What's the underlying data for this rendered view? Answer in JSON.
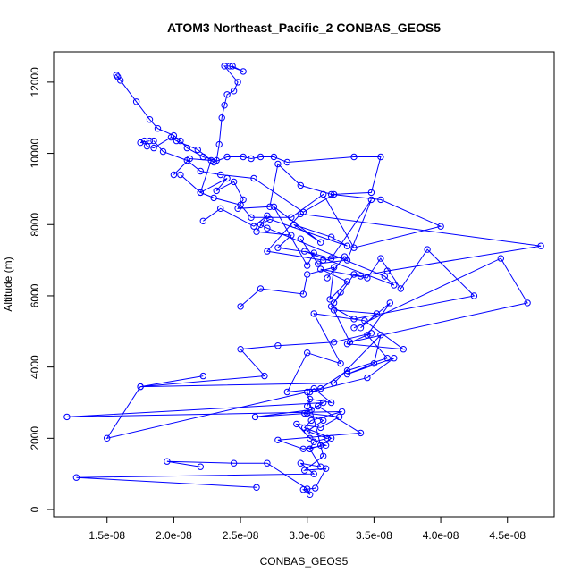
{
  "chart_data": {
    "type": "scatter",
    "title": "ATOM3 Northeast_Pacific_2 CONBAS_GEOS5",
    "xlabel": "CONBAS_GEOS5",
    "ylabel": "Altitude (m)",
    "xlim": [
      1.1e-08,
      4.85e-08
    ],
    "ylim": [
      -200,
      12850
    ],
    "x_ticks": [
      {
        "value": 1.5e-08,
        "label": "1.5e-08"
      },
      {
        "value": 2e-08,
        "label": "2.0e-08"
      },
      {
        "value": 2.5e-08,
        "label": "2.5e-08"
      },
      {
        "value": 3e-08,
        "label": "3.0e-08"
      },
      {
        "value": 3.5e-08,
        "label": "3.5e-08"
      },
      {
        "value": 4e-08,
        "label": "4.0e-08"
      },
      {
        "value": 4.5e-08,
        "label": "4.5e-08"
      }
    ],
    "y_ticks": [
      {
        "value": 0,
        "label": "0"
      },
      {
        "value": 2000,
        "label": "2000"
      },
      {
        "value": 4000,
        "label": "4000"
      },
      {
        "value": 6000,
        "label": "6000"
      },
      {
        "value": 8000,
        "label": "8000"
      },
      {
        "value": 10000,
        "label": "10000"
      },
      {
        "value": 12000,
        "label": "12000"
      }
    ],
    "grid": false,
    "markers": "open-circle",
    "connected": true,
    "color": "#0000ff",
    "series": [
      {
        "x": [
          2.62e-08,
          1.27e-08,
          3.05e-08,
          2.95e-08,
          3.1e-08,
          3.02e-08,
          3.05e-08,
          3.15e-08,
          3e-08,
          3.12e-08,
          2.98e-08,
          3.08e-08,
          3.4e-08,
          2.78e-08,
          2.97e-08,
          3.14e-08,
          3.02e-08,
          2.92e-08,
          3.1e-08,
          3.24e-08,
          3e-08,
          2.61e-08,
          3.03e-08,
          3.12e-08,
          1.2e-08,
          3.26e-08,
          3.03e-08,
          2.98e-08,
          3.18e-08,
          3.1e-08,
          3.02e-08
        ],
        "y": [
          620,
          900,
          1000,
          1300,
          1200,
          1700,
          1900,
          2000,
          2200,
          2500,
          2700,
          2900,
          2150,
          1950,
          1700,
          1800,
          2000,
          2400,
          2300,
          2600,
          2700,
          2600,
          2800,
          3000,
          2600,
          2750,
          2500,
          2300,
          2000,
          1800,
          1700
        ]
      },
      {
        "x": [
          2.2e-08,
          1.95e-08,
          2.45e-08,
          2.7e-08,
          3e-08,
          3.02e-08,
          2.97e-08,
          3.06e-08,
          3.14e-08,
          2.98e-08,
          3.12e-08,
          3e-08,
          1.5e-08,
          1.75e-08,
          3.2e-08,
          3.55e-08,
          3.5e-08,
          3.3e-08,
          3.65e-08,
          3.45e-08,
          3.02e-08,
          3.05e-08,
          3.18e-08,
          3.02e-08,
          3e-08
        ],
        "y": [
          1200,
          1350,
          1300,
          1300,
          580,
          420,
          560,
          600,
          1150,
          1100,
          1500,
          3300,
          2000,
          3450,
          3550,
          4900,
          4100,
          3800,
          4250,
          3700,
          3300,
          3400,
          3000,
          3100,
          2900
        ]
      },
      {
        "x": [
          2.22e-08,
          1.75e-08,
          2.68e-08,
          2.5e-08,
          2.78e-08,
          3.2e-08,
          3.48e-08,
          3.3e-08,
          3.72e-08,
          3.43e-08,
          3.05e-08,
          3.25e-08,
          3e-08,
          2.85e-08,
          3.1e-08,
          3.3e-08,
          3.6e-08,
          3.45e-08,
          3.62e-08,
          3.4e-08,
          3.52e-08,
          3.2e-08,
          3.32e-08,
          4.65e-08,
          4.45e-08,
          3.35e-08
        ],
        "y": [
          3750,
          3450,
          3750,
          4500,
          4600,
          4700,
          4950,
          4650,
          4500,
          5300,
          5500,
          4100,
          4400,
          3300,
          3400,
          3900,
          4250,
          4900,
          5800,
          5100,
          5500,
          5600,
          4700,
          5800,
          7050,
          5100
        ]
      },
      {
        "x": [
          2.5e-08,
          2.65e-08,
          2.97e-08,
          3e-08,
          3.2e-08,
          3.17e-08,
          3.3e-08,
          3.1e-08,
          3.45e-08,
          3.55e-08,
          3.7e-08,
          3.9e-08,
          4.25e-08,
          3.35e-08,
          3.18e-08,
          3.25e-08,
          3.2e-08,
          3.35e-08,
          3.4e-08,
          3.6e-08,
          4.75e-08,
          2.95e-08,
          2.7e-08,
          3.12e-08,
          3.28e-08,
          3.15e-08
        ],
        "y": [
          5700,
          6200,
          6050,
          6600,
          6800,
          5900,
          6400,
          6750,
          6500,
          7050,
          6200,
          7300,
          6000,
          5350,
          5700,
          6100,
          5800,
          6600,
          6550,
          6700,
          7400,
          8300,
          7250,
          7000,
          7100,
          6500
        ]
      },
      {
        "x": [
          2.22e-08,
          2.35e-08,
          2.6e-08,
          2.7e-08,
          2.62e-08,
          2.88e-08,
          2.78e-08,
          3.05e-08,
          3e-08,
          2.75e-08,
          3.1e-08,
          2.9e-08,
          3.18e-08,
          3.3e-08,
          2.72e-08,
          2.65e-08,
          2.7e-08,
          3.58e-08,
          3.65e-08,
          2.98e-08,
          3.18e-08,
          3.48e-08,
          3.3e-08,
          3.08e-08,
          2.95e-08
        ],
        "y": [
          8100,
          8450,
          7950,
          8250,
          7800,
          7700,
          7350,
          7200,
          6850,
          8500,
          7500,
          8000,
          7650,
          7400,
          8150,
          8000,
          7900,
          6550,
          6300,
          7250,
          7050,
          8700,
          7000,
          6900,
          7600
        ]
      },
      {
        "x": [
          2e-08,
          2.12e-08,
          2.28e-08,
          2.2e-08,
          2.4e-08,
          2.32e-08,
          2.45e-08,
          2.52e-08,
          2.48e-08,
          2.72e-08,
          2.78e-08,
          2.95e-08,
          3.18e-08,
          3.55e-08,
          4e-08,
          3.35e-08,
          3.12e-08,
          2.88e-08,
          2.58e-08,
          2.5e-08,
          2.3e-08,
          2.2e-08,
          2.05e-08
        ],
        "y": [
          9400,
          9850,
          9800,
          8900,
          9300,
          8950,
          9200,
          8700,
          8450,
          8500,
          9700,
          9100,
          8850,
          8700,
          7950,
          7350,
          8850,
          8200,
          8200,
          8550,
          8750,
          8900,
          9400
        ]
      },
      {
        "x": [
          1.82e-08,
          1.75e-08,
          1.78e-08,
          1.8e-08,
          1.85e-08,
          1.98e-08,
          2.02e-08,
          2.18e-08,
          2.3e-08,
          2.4e-08,
          2.52e-08,
          2.58e-08,
          2.65e-08,
          2.75e-08,
          2.85e-08,
          3.35e-08,
          3.55e-08,
          3.48e-08,
          3.2e-08,
          2.97e-08,
          2.6e-08,
          2.35e-08,
          2.2e-08,
          2.1e-08,
          1.92e-08,
          1.85e-08
        ],
        "y": [
          10350,
          10300,
          10350,
          10200,
          10150,
          10450,
          10350,
          10100,
          9750,
          9900,
          9900,
          9850,
          9900,
          9900,
          9750,
          9900,
          9900,
          8900,
          8850,
          8350,
          9300,
          9400,
          9500,
          9800,
          10050,
          10350
        ]
      },
      {
        "x": [
          1.57e-08,
          1.58e-08,
          1.6e-08,
          1.72e-08,
          1.82e-08,
          1.88e-08,
          2e-08,
          2.05e-08,
          2.1e-08,
          2.22e-08,
          2.32e-08,
          2.34e-08,
          2.36e-08,
          2.38e-08,
          2.4e-08,
          2.45e-08,
          2.48e-08,
          2.38e-08,
          2.42e-08,
          2.52e-08,
          2.44e-08
        ],
        "y": [
          12200,
          12150,
          12050,
          11450,
          10950,
          10700,
          10500,
          10350,
          10150,
          9900,
          9800,
          10250,
          11000,
          11350,
          11650,
          11750,
          12000,
          12450,
          12450,
          12300,
          12450
        ]
      }
    ]
  }
}
